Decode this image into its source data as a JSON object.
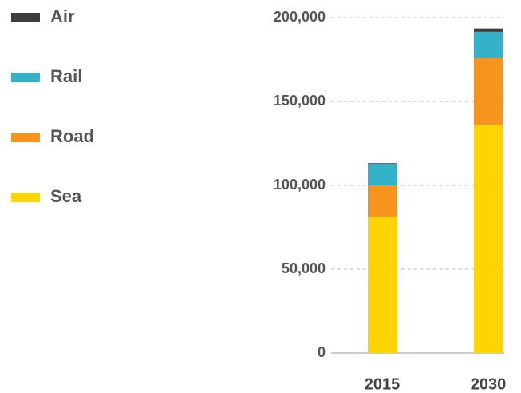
{
  "chart_data": {
    "type": "stacked_bar",
    "categories": [
      "2015",
      "2030"
    ],
    "series": [
      {
        "name": "Sea",
        "color": "#ffd400",
        "values": [
          81000,
          136000
        ]
      },
      {
        "name": "Road",
        "color": "#f7941d",
        "values": [
          19000,
          40000
        ]
      },
      {
        "name": "Rail",
        "color": "#35b0c9",
        "values": [
          13000,
          15500
        ]
      },
      {
        "name": "Air",
        "color": "#3d3d3d",
        "values": [
          300,
          2000
        ]
      }
    ],
    "ylim": [
      0,
      200000
    ],
    "yticks": [
      0,
      {
        "value": 50000,
        "label": "50,000"
      },
      {
        "value": 100000,
        "label": "100,000"
      },
      {
        "value": 150000,
        "label": "150,000"
      },
      {
        "value": 200000,
        "label": "200,000"
      }
    ],
    "grid": true
  }
}
